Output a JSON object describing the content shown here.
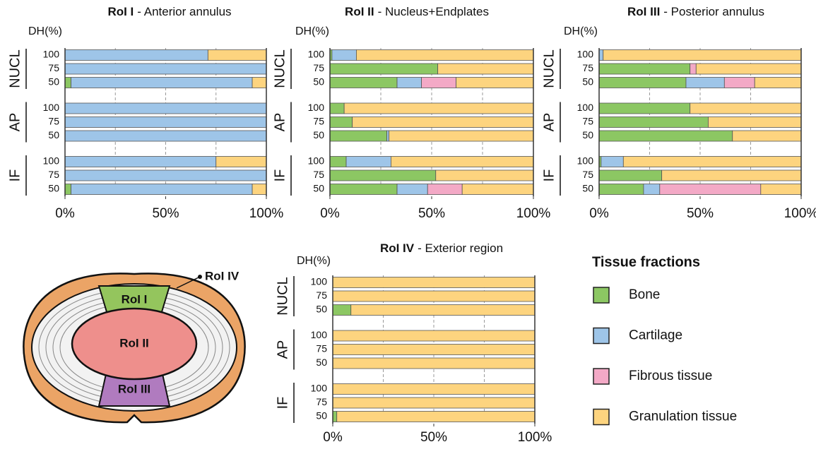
{
  "chart_data": [
    {
      "type": "bar",
      "orientation": "horizontal",
      "stacked": true,
      "title": "RoI I",
      "title_suffix": "- Anterior annulus",
      "ylabel": "DH(%)",
      "groups": [
        "NUCL",
        "AP",
        "IF"
      ],
      "categories": [
        "100",
        "75",
        "50",
        "100",
        "75",
        "50",
        "100",
        "75",
        "50"
      ],
      "xlim": [
        0,
        100
      ],
      "xticks": [
        {
          "value": 0,
          "label": "0%"
        },
        {
          "value": 50,
          "label": "50%"
        },
        {
          "value": 100,
          "label": "100%"
        }
      ],
      "gridlines": [
        25,
        50,
        75
      ],
      "series": [
        {
          "values": [
            0,
            0,
            3,
            0,
            0,
            0,
            0,
            0,
            3
          ]
        },
        {
          "values": [
            71,
            100,
            90,
            100,
            100,
            100,
            75,
            100,
            90
          ]
        },
        {
          "values": [
            0,
            0,
            0,
            0,
            0,
            0,
            0,
            0,
            0
          ]
        },
        {
          "values": [
            29,
            0,
            7,
            0,
            0,
            0,
            25,
            0,
            7
          ]
        }
      ]
    },
    {
      "type": "bar",
      "orientation": "horizontal",
      "stacked": true,
      "title": "RoI II",
      "title_suffix": "- Nucleus+Endplates",
      "ylabel": "DH(%)",
      "groups": [
        "NUCL",
        "AP",
        "IF"
      ],
      "categories": [
        "100",
        "75",
        "50",
        "100",
        "75",
        "50",
        "100",
        "75",
        "50"
      ],
      "xlim": [
        0,
        100
      ],
      "xticks": [
        {
          "value": 0,
          "label": "0%"
        },
        {
          "value": 50,
          "label": "50%"
        },
        {
          "value": 100,
          "label": "100%"
        }
      ],
      "gridlines": [
        25,
        50,
        75
      ],
      "series": [
        {
          "values": [
            1,
            53,
            33,
            7,
            11,
            28,
            8,
            52,
            33
          ]
        },
        {
          "values": [
            12,
            0,
            12,
            0,
            0,
            1,
            22,
            0,
            15
          ]
        },
        {
          "values": [
            0,
            0,
            17,
            0,
            0,
            0,
            0,
            0,
            17
          ]
        },
        {
          "values": [
            87,
            47,
            38,
            93,
            89,
            71,
            70,
            48,
            35
          ]
        }
      ]
    },
    {
      "type": "bar",
      "orientation": "horizontal",
      "stacked": true,
      "title": "RoI III",
      "title_suffix": "- Posterior annulus",
      "ylabel": "DH(%)",
      "groups": [
        "NUCL",
        "AP",
        "IF"
      ],
      "categories": [
        "100",
        "75",
        "50",
        "100",
        "75",
        "50",
        "100",
        "75",
        "50"
      ],
      "xlim": [
        0,
        100
      ],
      "xticks": [
        {
          "value": 0,
          "label": "0%"
        },
        {
          "value": 50,
          "label": "50%"
        },
        {
          "value": 100,
          "label": "100%"
        }
      ],
      "gridlines": [
        25,
        50,
        75
      ],
      "series": [
        {
          "values": [
            0,
            45,
            43,
            45,
            54,
            66,
            1,
            31,
            22
          ]
        },
        {
          "values": [
            2,
            0,
            19,
            0,
            0,
            0,
            11,
            0,
            8
          ]
        },
        {
          "values": [
            0,
            3,
            15,
            0,
            0,
            0,
            0,
            0,
            50
          ]
        },
        {
          "values": [
            98,
            52,
            23,
            55,
            46,
            34,
            88,
            69,
            20
          ]
        }
      ]
    },
    {
      "type": "bar",
      "orientation": "horizontal",
      "stacked": true,
      "title": "RoI IV",
      "title_suffix": "- Exterior region",
      "ylabel": "DH(%)",
      "groups": [
        "NUCL",
        "AP",
        "IF"
      ],
      "categories": [
        "100",
        "75",
        "50",
        "100",
        "75",
        "50",
        "100",
        "75",
        "50"
      ],
      "xlim": [
        0,
        100
      ],
      "xticks": [
        {
          "value": 0,
          "label": "0%"
        },
        {
          "value": 50,
          "label": "50%"
        },
        {
          "value": 100,
          "label": "100%"
        }
      ],
      "gridlines": [
        25,
        50,
        75
      ],
      "series": [
        {
          "values": [
            0,
            0,
            9,
            0,
            0,
            0,
            0,
            0,
            2
          ]
        },
        {
          "values": [
            0,
            0,
            0,
            0,
            0,
            0,
            0,
            0,
            0
          ]
        },
        {
          "values": [
            0,
            0,
            0,
            0,
            0,
            0,
            0,
            0,
            0
          ]
        },
        {
          "values": [
            100,
            100,
            91,
            100,
            100,
            100,
            100,
            100,
            98
          ]
        }
      ]
    }
  ],
  "legend": {
    "title": "Tissue fractions",
    "items": [
      {
        "name": "Bone",
        "color": "#8cc763"
      },
      {
        "name": "Cartilage",
        "color": "#9ec5e8"
      },
      {
        "name": "Fibrous tissue",
        "color": "#f3a9c6"
      },
      {
        "name": "Granulation tissue",
        "color": "#fdd47f"
      }
    ]
  },
  "diagram": {
    "labels": [
      "RoI I",
      "RoI II",
      "RoI III",
      "RoI IV"
    ]
  }
}
